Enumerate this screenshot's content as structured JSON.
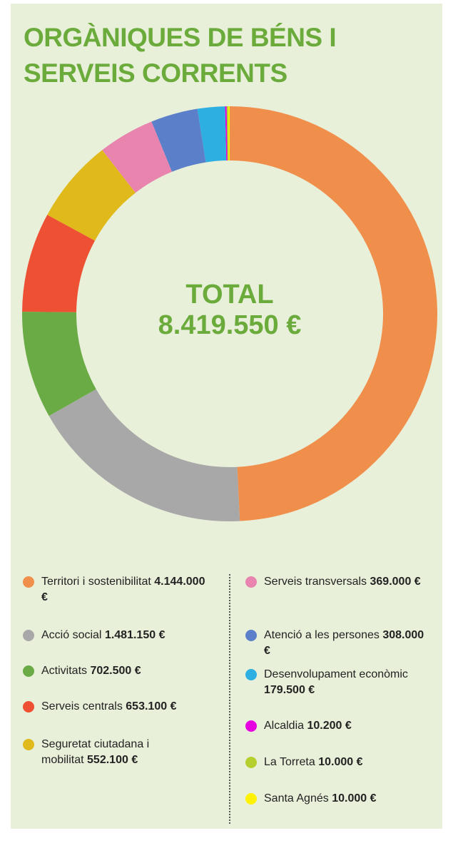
{
  "chart_data": {
    "type": "pie",
    "donut": true,
    "title": "ORGÀNIQUES DE BÉNS I SERVEIS CORRENTS",
    "center_title": "TOTAL",
    "center_label": "8.419.550 €",
    "categories": [
      "Territori i sostenibilitat",
      "Acció social",
      "Activitats",
      "Serveis centrals",
      "Seguretat ciutadana i mobilitat",
      "Serveis transversals",
      "Atenció a les persones",
      "Desenvolupament econòmic",
      "Alcaldia",
      "La Torreta",
      "Santa Agnés"
    ],
    "values": [
      4144000,
      1481150,
      702500,
      653100,
      552100,
      369000,
      308000,
      179500,
      10200,
      10000,
      10000
    ],
    "value_labels": [
      "4.144.000 €",
      "1.481.150 €",
      "702.500 €",
      "653.100 €",
      "552.100 €",
      "369.000 €",
      "308.000 €",
      "179.500 €",
      "10.200 €",
      "10.000 €",
      "10.000 €"
    ],
    "colors": [
      "#f08e4c",
      "#a8a8a8",
      "#6bab46",
      "#ee5034",
      "#e0b91b",
      "#e884ae",
      "#5b80c9",
      "#2eafe2",
      "#e600e0",
      "#b5cf2f",
      "#fff200"
    ]
  }
}
